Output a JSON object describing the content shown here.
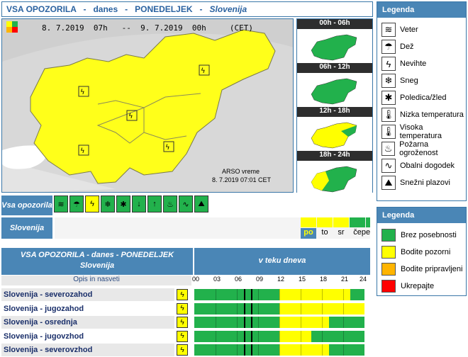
{
  "header": {
    "prefix": "VSA OPOZORILA   -   danes   -   PONEDELJEK   -   ",
    "region": "Slovenija"
  },
  "map": {
    "validity": "8. 7.2019  07h   --  9. 7.2019  00h     (CET)",
    "source": "ARSO vreme",
    "timestamp": "8. 7.2019  07:01 CET"
  },
  "periods": [
    "00h - 06h",
    "06h - 12h",
    "12h - 18h",
    "18h - 24h"
  ],
  "period_levels": [
    "green",
    "green",
    "yellow",
    "yellow"
  ],
  "legend_types": {
    "title": "Legenda",
    "items": [
      {
        "label": "Veter",
        "icon": "wind-icon"
      },
      {
        "label": "Dež",
        "icon": "rain-icon"
      },
      {
        "label": "Nevihte",
        "icon": "thunderstorm-icon"
      },
      {
        "label": "Sneg",
        "icon": "snow-icon"
      },
      {
        "label": "Poledica/žled",
        "icon": "ice-icon"
      },
      {
        "label": "Nizka temperatura",
        "icon": "low-temp-icon"
      },
      {
        "label": "Visoka temperatura",
        "icon": "high-temp-icon"
      },
      {
        "label": "Požarna ogroženost",
        "icon": "fire-danger-icon"
      },
      {
        "label": "Obalni dogodek",
        "icon": "coastal-event-icon"
      },
      {
        "label": "Snežni plazovi",
        "icon": "avalanche-icon"
      }
    ]
  },
  "legend_levels": {
    "title": "Legenda",
    "items": [
      {
        "label": "Brez posebnosti",
        "color": "#22b14c"
      },
      {
        "label": "Bodite pozorni",
        "color": "#ffff00"
      },
      {
        "label": "Bodite pripravljeni",
        "color": "#ffb400"
      },
      {
        "label": "Ukrepajte",
        "color": "#ff0000"
      }
    ]
  },
  "summary": {
    "all_label": "Vsa opozorila",
    "region_label": "Slovenija",
    "type_levels": [
      "green",
      "green",
      "yellow",
      "green",
      "green",
      "green",
      "green",
      "green",
      "green",
      "green"
    ],
    "days": [
      {
        "label": "po",
        "color": "#ffff00",
        "active": true
      },
      {
        "label": "to",
        "color": "#ffff00",
        "active": false
      },
      {
        "label": "sr",
        "color": "#ffff00",
        "active": false
      },
      {
        "label": "če",
        "color": "#22b14c",
        "active": false
      },
      {
        "label": "pe",
        "color": "#22b14c",
        "active": false
      }
    ]
  },
  "table": {
    "title": "VSA OPOZORILA - danes - PONEDELJEK",
    "subtitle": "Slovenija",
    "right_title": "v teku dneva",
    "col_header": "Opis in nasveti",
    "hours": [
      "00",
      "03",
      "06",
      "09",
      "12",
      "15",
      "18",
      "21",
      "24"
    ],
    "rows": [
      {
        "name": "Slovenija - severozahod",
        "yellow_from": 12,
        "yellow_to": 22
      },
      {
        "name": "Slovenija - jugozahod",
        "yellow_from": 12,
        "yellow_to": 24
      },
      {
        "name": "Slovenija - osrednja",
        "yellow_from": 12,
        "yellow_to": 19
      },
      {
        "name": "Slovenija - jugovzhod",
        "yellow_from": 12,
        "yellow_to": 16.5
      },
      {
        "name": "Slovenija - severovzhod",
        "yellow_from": 12,
        "yellow_to": 19
      }
    ]
  }
}
